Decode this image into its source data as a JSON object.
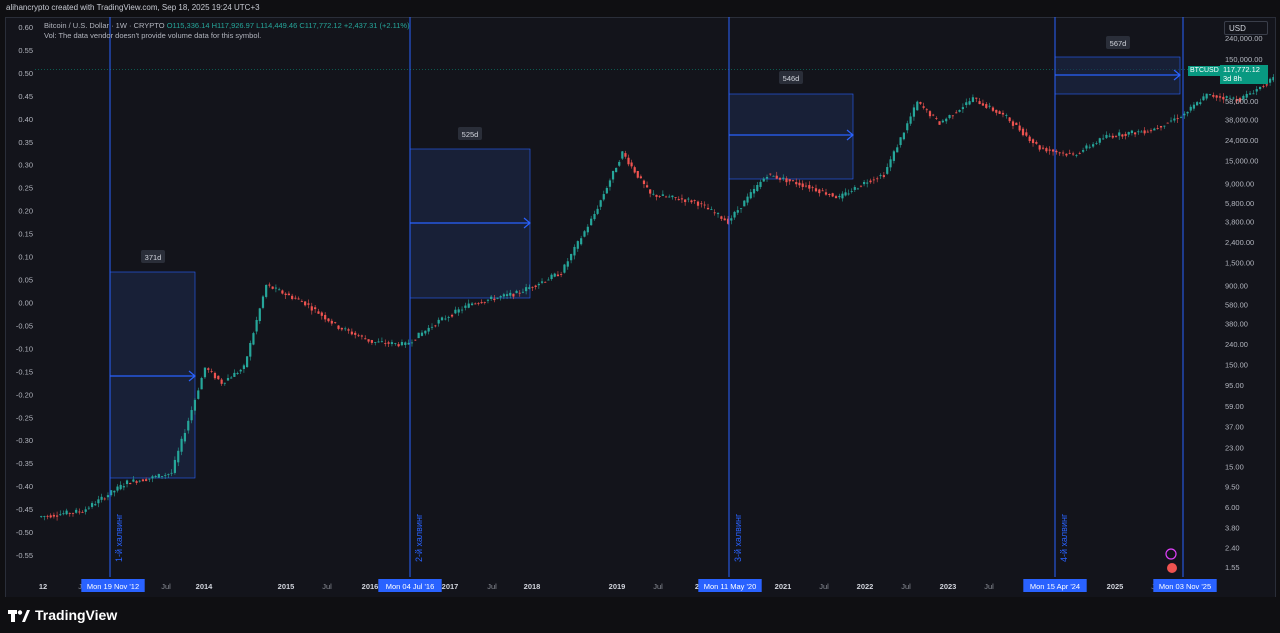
{
  "header": {
    "credit": "alihancrypto created with TradingView.com, Sep 18, 2025 19:24 UTC+3"
  },
  "legend": {
    "symbol_line": "Bitcoin / U.S. Dollar · 1W · CRYPTO",
    "open": "O115,336.14",
    "high": "H117,926.97",
    "low": "L114,449.46",
    "close": "C117,772.12",
    "change": "+2,437.31 (+2.11%)",
    "volume_note": "Vol: The data vendor doesn't provide volume data for this symbol."
  },
  "currency_selector": "USD",
  "price_tag": {
    "symbol": "BTCUSD",
    "price": "117,772.12",
    "countdown": "3d 8h"
  },
  "colors": {
    "up": "#26a69a",
    "down": "#ef5350",
    "halving_line": "#2962ff",
    "box_fill": "#1e2a4f",
    "price_tag": "#089981"
  },
  "chart_data": {
    "type": "line",
    "title": "",
    "x_ticks": [
      "12",
      "Jul",
      "Mon 19 Nov '12",
      "Jul",
      "2014",
      "2015",
      "Jul",
      "2016",
      "Mon 04 Jul '16",
      "2017",
      "Jul",
      "2018",
      "2019",
      "Jul",
      "20",
      "Mon 11 May '20",
      "2021",
      "Jul",
      "2022",
      "Jul",
      "2023",
      "Jul",
      "Mon 15 Apr '24",
      "2025",
      "Jul",
      "Mon 03 Nov '25"
    ],
    "left_axis": {
      "ticks": [
        "0.60",
        "0.55",
        "0.50",
        "0.45",
        "0.40",
        "0.35",
        "0.30",
        "0.25",
        "0.20",
        "0.15",
        "0.10",
        "0.05",
        "0.00",
        "-0.05",
        "-0.10",
        "-0.15",
        "-0.20",
        "-0.25",
        "-0.30",
        "-0.35",
        "-0.40",
        "-0.45",
        "-0.50",
        "-0.55"
      ],
      "range": [
        -0.55,
        0.6
      ]
    },
    "right_axis": {
      "scale": "log",
      "ticks": [
        "240,000.00",
        "150,000.00",
        "95,000.00",
        "58,000.00",
        "38,000.00",
        "24,000.00",
        "15,000.00",
        "9,000.00",
        "5,800.00",
        "3,800.00",
        "2,400.00",
        "1,500.00",
        "900.00",
        "580.00",
        "380.00",
        "240.00",
        "150.00",
        "95.00",
        "59.00",
        "37.00",
        "23.00",
        "15.00",
        "9.50",
        "6.00",
        "3.80",
        "2.40",
        "1.55"
      ]
    },
    "price_series": [
      {
        "x": 0.0,
        "y": 4.8
      },
      {
        "x": 0.04,
        "y": 5.5
      },
      {
        "x": 0.08,
        "y": 10.5
      },
      {
        "x": 0.1,
        "y": 11.5
      },
      {
        "x": 0.12,
        "y": 13
      },
      {
        "x": 0.15,
        "y": 140
      },
      {
        "x": 0.165,
        "y": 100
      },
      {
        "x": 0.185,
        "y": 140
      },
      {
        "x": 0.205,
        "y": 900
      },
      {
        "x": 0.24,
        "y": 600
      },
      {
        "x": 0.27,
        "y": 350
      },
      {
        "x": 0.3,
        "y": 250
      },
      {
        "x": 0.33,
        "y": 235
      },
      {
        "x": 0.36,
        "y": 400
      },
      {
        "x": 0.39,
        "y": 600
      },
      {
        "x": 0.43,
        "y": 750
      },
      {
        "x": 0.47,
        "y": 1200
      },
      {
        "x": 0.5,
        "y": 4500
      },
      {
        "x": 0.525,
        "y": 18000
      },
      {
        "x": 0.55,
        "y": 7000
      },
      {
        "x": 0.59,
        "y": 6000
      },
      {
        "x": 0.62,
        "y": 3800
      },
      {
        "x": 0.655,
        "y": 11000
      },
      {
        "x": 0.69,
        "y": 8500
      },
      {
        "x": 0.72,
        "y": 6500
      },
      {
        "x": 0.745,
        "y": 9500
      },
      {
        "x": 0.76,
        "y": 11000
      },
      {
        "x": 0.79,
        "y": 56000
      },
      {
        "x": 0.81,
        "y": 35000
      },
      {
        "x": 0.84,
        "y": 61000
      },
      {
        "x": 0.87,
        "y": 40000
      },
      {
        "x": 0.9,
        "y": 20000
      },
      {
        "x": 0.93,
        "y": 17000
      },
      {
        "x": 0.96,
        "y": 26000
      },
      {
        "x": 1.0,
        "y": 30000
      },
      {
        "x": 1.03,
        "y": 43000
      },
      {
        "x": 1.05,
        "y": 66000
      },
      {
        "x": 1.08,
        "y": 60000
      },
      {
        "x": 1.11,
        "y": 95000
      },
      {
        "x": 1.13,
        "y": 85000
      },
      {
        "x": 1.16,
        "y": 118000
      },
      {
        "x": 1.18,
        "y": 117772
      }
    ],
    "halvings": [
      {
        "label": "1-й халвинг",
        "date_label": "Mon 19 Nov '12",
        "box_label": "371d"
      },
      {
        "label": "2-й халвинг",
        "date_label": "Mon 04 Jul '16",
        "box_label": "525d"
      },
      {
        "label": "3-й халвинг",
        "date_label": "Mon 11 May '20",
        "box_label": "546d"
      },
      {
        "label": "4-й халвинг",
        "date_label": "Mon 15 Apr '24",
        "box_label": "567d"
      }
    ],
    "end_marker": {
      "date_label": "Mon 03 Nov '25"
    }
  },
  "footer": {
    "brand": "TradingView"
  }
}
